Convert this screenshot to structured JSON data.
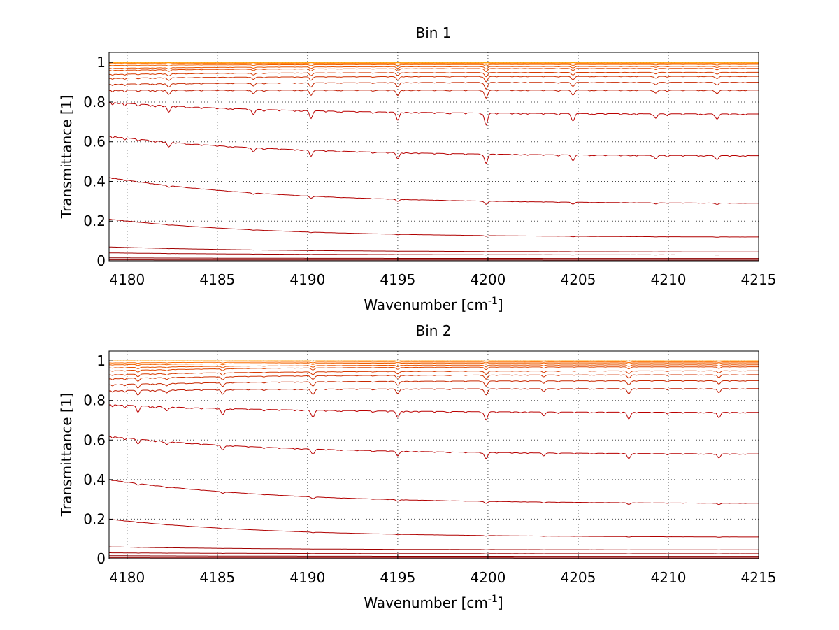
{
  "chart_data": [
    {
      "type": "line",
      "title": "Bin 1",
      "xlabel": "Wavenumber [cm",
      "xlabel_sup": "-1",
      "xlabel_end": "]",
      "ylabel": "Transmittance [1]",
      "xlim": [
        4179,
        4215
      ],
      "ylim": [
        0,
        1.05
      ],
      "xticks": [
        4180,
        4185,
        4190,
        4195,
        4200,
        4205,
        4210,
        4215
      ],
      "xtick_labels": [
        "4180",
        "4185",
        "4190",
        "4195",
        "4200",
        "4205",
        "4210",
        "4215"
      ],
      "yticks": [
        0,
        0.2,
        0.4,
        0.6,
        0.8,
        1
      ],
      "ytick_labels": [
        "0",
        "0.2",
        "0.4",
        "0.6",
        "0.8",
        "1"
      ],
      "grid": true,
      "absorption_lines": [
        {
          "x": 4182.3,
          "depth": 0.07,
          "width": 0.12
        },
        {
          "x": 4187.0,
          "depth": 0.06,
          "width": 0.12
        },
        {
          "x": 4190.2,
          "depth": 0.08,
          "width": 0.12
        },
        {
          "x": 4195.0,
          "depth": 0.09,
          "width": 0.12
        },
        {
          "x": 4199.9,
          "depth": 0.13,
          "width": 0.12
        },
        {
          "x": 4204.7,
          "depth": 0.08,
          "width": 0.12
        },
        {
          "x": 4209.3,
          "depth": 0.05,
          "width": 0.12
        },
        {
          "x": 4212.7,
          "depth": 0.06,
          "width": 0.12
        }
      ],
      "series": [
        {
          "start": 0.005,
          "end": 0.004,
          "strength": 0.0,
          "color": "#8b0000"
        },
        {
          "start": 0.015,
          "end": 0.012,
          "strength": 0.0,
          "color": "#8b0000"
        },
        {
          "start": 0.04,
          "end": 0.03,
          "strength": 0.01,
          "color": "#a00000"
        },
        {
          "start": 0.07,
          "end": 0.045,
          "strength": 0.01,
          "color": "#a00000"
        },
        {
          "start": 0.21,
          "end": 0.12,
          "strength": 0.03,
          "color": "#b00000"
        },
        {
          "start": 0.42,
          "end": 0.29,
          "strength": 0.12,
          "color": "#b30000"
        },
        {
          "start": 0.63,
          "end": 0.53,
          "strength": 0.35,
          "color": "#b80000"
        },
        {
          "start": 0.8,
          "end": 0.74,
          "strength": 0.45,
          "color": "#bb0000"
        },
        {
          "start": 0.86,
          "end": 0.86,
          "strength": 0.3,
          "color": "#c01a00"
        },
        {
          "start": 0.89,
          "end": 0.9,
          "strength": 0.25,
          "color": "#c82800"
        },
        {
          "start": 0.92,
          "end": 0.93,
          "strength": 0.2,
          "color": "#d03000"
        },
        {
          "start": 0.94,
          "end": 0.95,
          "strength": 0.16,
          "color": "#d83a00"
        },
        {
          "start": 0.96,
          "end": 0.97,
          "strength": 0.12,
          "color": "#e04600"
        },
        {
          "start": 0.97,
          "end": 0.98,
          "strength": 0.09,
          "color": "#e85400"
        },
        {
          "start": 0.985,
          "end": 0.99,
          "strength": 0.06,
          "color": "#f06000"
        },
        {
          "start": 0.995,
          "end": 0.995,
          "strength": 0.04,
          "color": "#ff7000"
        },
        {
          "start": 1.0,
          "end": 1.0,
          "strength": 0.02,
          "color": "#ff8c00"
        },
        {
          "start": 1.0,
          "end": 1.0,
          "strength": 0.01,
          "color": "#ffa500"
        }
      ]
    },
    {
      "type": "line",
      "title": "Bin 2",
      "xlabel": "Wavenumber [cm",
      "xlabel_sup": "-1",
      "xlabel_end": "]",
      "ylabel": "Transmittance [1]",
      "xlim": [
        4179,
        4215
      ],
      "ylim": [
        0,
        1.05
      ],
      "xticks": [
        4180,
        4185,
        4190,
        4195,
        4200,
        4205,
        4210,
        4215
      ],
      "xtick_labels": [
        "4180",
        "4185",
        "4190",
        "4195",
        "4200",
        "4205",
        "4210",
        "4215"
      ],
      "yticks": [
        0,
        0.2,
        0.4,
        0.6,
        0.8,
        1
      ],
      "ytick_labels": [
        "0",
        "0.2",
        "0.4",
        "0.6",
        "0.8",
        "1"
      ],
      "grid": true,
      "absorption_lines": [
        {
          "x": 4180.6,
          "depth": 0.06,
          "width": 0.12
        },
        {
          "x": 4182.2,
          "depth": 0.05,
          "width": 0.12
        },
        {
          "x": 4185.3,
          "depth": 0.08,
          "width": 0.12
        },
        {
          "x": 4190.3,
          "depth": 0.09,
          "width": 0.12
        },
        {
          "x": 4195.0,
          "depth": 0.08,
          "width": 0.12
        },
        {
          "x": 4199.9,
          "depth": 0.1,
          "width": 0.12
        },
        {
          "x": 4203.1,
          "depth": 0.04,
          "width": 0.12
        },
        {
          "x": 4207.8,
          "depth": 0.08,
          "width": 0.12
        },
        {
          "x": 4212.8,
          "depth": 0.07,
          "width": 0.12
        }
      ],
      "series": [
        {
          "start": 0.005,
          "end": 0.004,
          "strength": 0.0,
          "color": "#8b0000"
        },
        {
          "start": 0.015,
          "end": 0.012,
          "strength": 0.0,
          "color": "#8b0000"
        },
        {
          "start": 0.03,
          "end": 0.025,
          "strength": 0.01,
          "color": "#a00000"
        },
        {
          "start": 0.06,
          "end": 0.045,
          "strength": 0.01,
          "color": "#a00000"
        },
        {
          "start": 0.2,
          "end": 0.11,
          "strength": 0.03,
          "color": "#b00000"
        },
        {
          "start": 0.4,
          "end": 0.28,
          "strength": 0.1,
          "color": "#b30000"
        },
        {
          "start": 0.62,
          "end": 0.53,
          "strength": 0.3,
          "color": "#b80000"
        },
        {
          "start": 0.78,
          "end": 0.74,
          "strength": 0.4,
          "color": "#bb0000"
        },
        {
          "start": 0.85,
          "end": 0.86,
          "strength": 0.3,
          "color": "#c01a00"
        },
        {
          "start": 0.88,
          "end": 0.9,
          "strength": 0.25,
          "color": "#c82800"
        },
        {
          "start": 0.91,
          "end": 0.93,
          "strength": 0.2,
          "color": "#d03000"
        },
        {
          "start": 0.93,
          "end": 0.95,
          "strength": 0.16,
          "color": "#d83a00"
        },
        {
          "start": 0.95,
          "end": 0.97,
          "strength": 0.12,
          "color": "#e04600"
        },
        {
          "start": 0.965,
          "end": 0.98,
          "strength": 0.09,
          "color": "#e85400"
        },
        {
          "start": 0.98,
          "end": 0.99,
          "strength": 0.06,
          "color": "#f06000"
        },
        {
          "start": 0.99,
          "end": 0.995,
          "strength": 0.04,
          "color": "#ff7000"
        },
        {
          "start": 1.0,
          "end": 1.0,
          "strength": 0.02,
          "color": "#ff8c00"
        },
        {
          "start": 1.0,
          "end": 1.0,
          "strength": 0.01,
          "color": "#ffa500"
        }
      ]
    }
  ]
}
